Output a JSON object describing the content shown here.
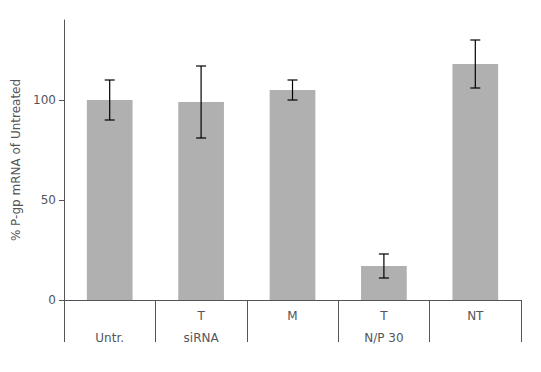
{
  "chart_data": {
    "type": "bar",
    "categories": [
      null,
      "T",
      "M",
      "T",
      "NT"
    ],
    "values": [
      100,
      99,
      105,
      17,
      118
    ],
    "errors": [
      10,
      18,
      5,
      6,
      12
    ],
    "color": "#b0b0b0",
    "ylabel": "% P-gp mRNA of Untreated",
    "ylim": [
      0,
      140
    ],
    "yticks": [
      0,
      50,
      100
    ],
    "grid": false,
    "annotations": [
      {
        "text": "Untr.",
        "x": 0
      },
      {
        "text": "siRNA",
        "x": 1
      },
      {
        "text": "N/P 30",
        "x": 3
      }
    ]
  }
}
